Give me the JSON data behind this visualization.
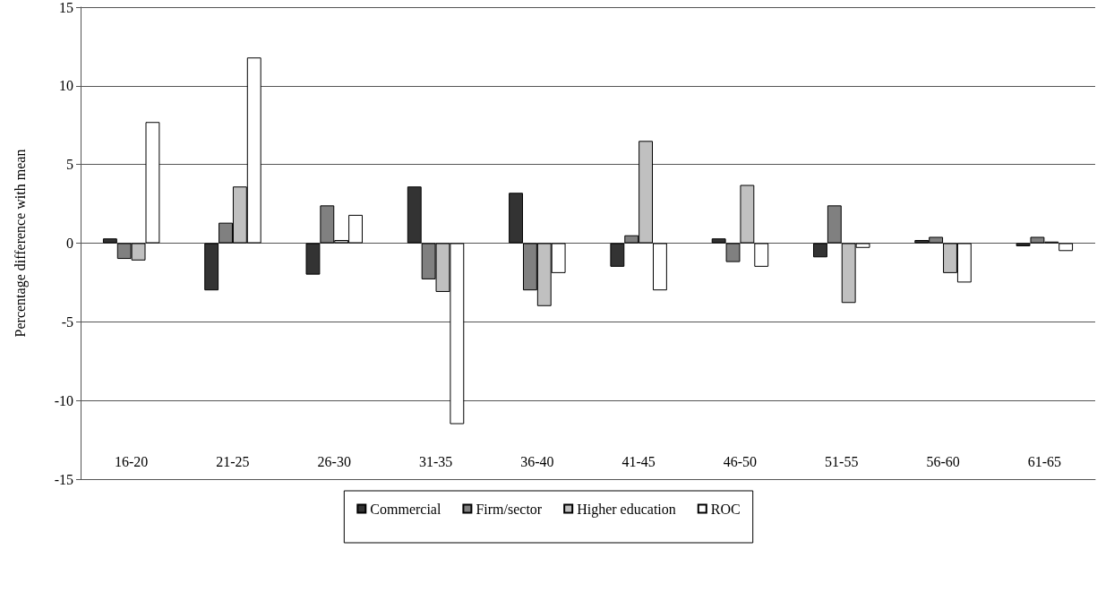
{
  "chart_data": {
    "type": "bar",
    "ylabel": "Percentage difference with mean",
    "categories": [
      "16-20",
      "21-25",
      "26-30",
      "31-35",
      "36-40",
      "41-45",
      "46-50",
      "51-55",
      "56-60",
      "61-65"
    ],
    "series": [
      {
        "name": "Commercial",
        "color": "#333333",
        "values": [
          0.3,
          -3.0,
          -2.0,
          3.6,
          3.2,
          -1.5,
          0.3,
          -0.9,
          0.2,
          -0.2
        ]
      },
      {
        "name": "Firm/sector",
        "color": "#808080",
        "values": [
          -1.0,
          1.3,
          2.4,
          -2.3,
          -3.0,
          0.5,
          -1.2,
          2.4,
          0.4,
          0.4
        ]
      },
      {
        "name": "Higher education",
        "color": "#c0c0c0",
        "values": [
          -1.1,
          3.6,
          0.2,
          -3.1,
          -4.0,
          6.5,
          3.7,
          -3.8,
          -1.9,
          0.1
        ]
      },
      {
        "name": "ROC",
        "color": "#ffffff",
        "values": [
          7.7,
          11.8,
          1.8,
          -11.5,
          -1.9,
          -3.0,
          -1.5,
          -0.3,
          -2.5,
          -0.5
        ]
      }
    ],
    "ylim": [
      -15,
      15
    ],
    "yticks": [
      -15,
      -10,
      -5,
      0,
      5,
      10,
      15
    ],
    "grid": "y",
    "legend": "bottom"
  }
}
